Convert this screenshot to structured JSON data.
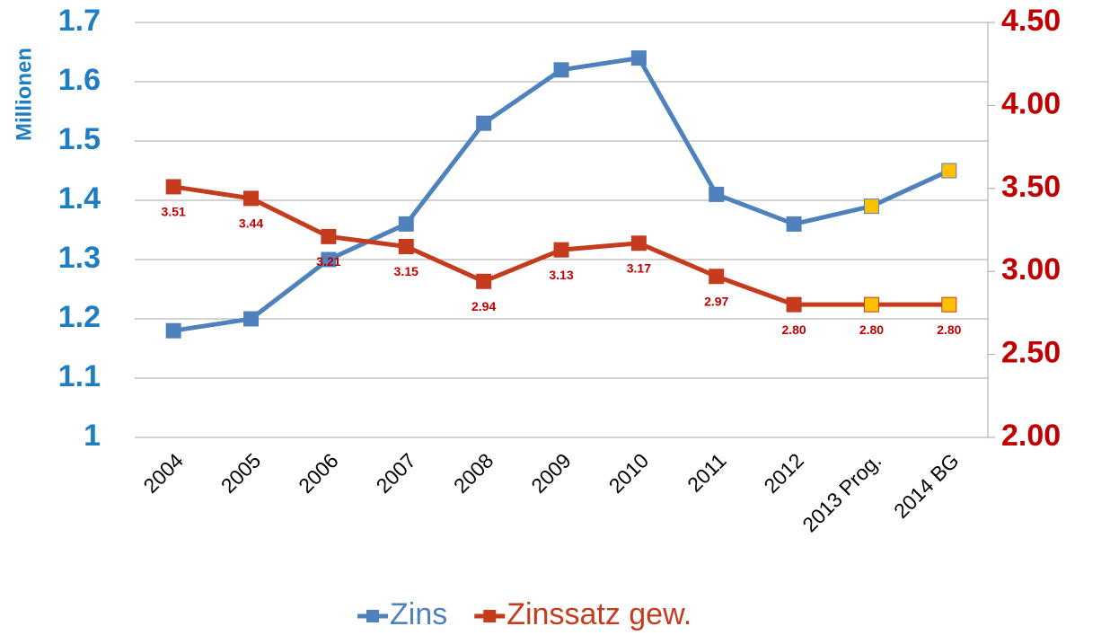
{
  "chart_data": {
    "type": "line",
    "y_label": "Millionen",
    "categories": [
      "2004",
      "2005",
      "2006",
      "2007",
      "2008",
      "2009",
      "2010",
      "2011",
      "2012",
      "2013 Prog.",
      "2014 BG"
    ],
    "series": [
      {
        "name": "Zins",
        "color": "#4f81bd",
        "axis": "y",
        "point_colors": [
          "#4f81bd",
          "#4f81bd",
          "#4f81bd",
          "#4f81bd",
          "#4f81bd",
          "#4f81bd",
          "#4f81bd",
          "#4f81bd",
          "#4f81bd",
          "#ffc000",
          "#ffc000"
        ],
        "values": [
          1.18,
          1.2,
          1.3,
          1.36,
          1.53,
          1.62,
          1.64,
          1.41,
          1.36,
          1.39,
          1.45
        ]
      },
      {
        "name": "Zinssatz gew.",
        "color": "#c43b1e",
        "axis": "y2",
        "point_colors": [
          "#c43b1e",
          "#c43b1e",
          "#c43b1e",
          "#c43b1e",
          "#c43b1e",
          "#c43b1e",
          "#c43b1e",
          "#c43b1e",
          "#c43b1e",
          "#ffc000",
          "#ffc000"
        ],
        "values": [
          3.51,
          3.44,
          3.21,
          3.15,
          2.94,
          3.13,
          3.17,
          2.97,
          2.8,
          2.8,
          2.8
        ],
        "value_labels": [
          "3.51",
          "3.44",
          "3.21",
          "3.15",
          "2.94",
          "3.13",
          "3.17",
          "2.97",
          "2.80",
          "2.80",
          "2.80"
        ]
      }
    ],
    "ylim": [
      1,
      1.7
    ],
    "yticks": [
      1,
      1.1,
      1.2,
      1.3,
      1.4,
      1.5,
      1.6,
      1.7
    ],
    "y2lim": [
      2,
      4.5
    ],
    "y2ticks": [
      {
        "value": 2,
        "label": "2.00"
      },
      {
        "value": 2.5,
        "label": "2.50"
      },
      {
        "value": 3,
        "label": "3.00"
      },
      {
        "value": 3.5,
        "label": "3.50"
      },
      {
        "value": 4,
        "label": "4.00"
      },
      {
        "value": 4.5,
        "label": "4.50"
      }
    ],
    "grid": true,
    "y_color": "#1f7ec2",
    "y2_color": "#c00000",
    "legend": "bottom"
  }
}
